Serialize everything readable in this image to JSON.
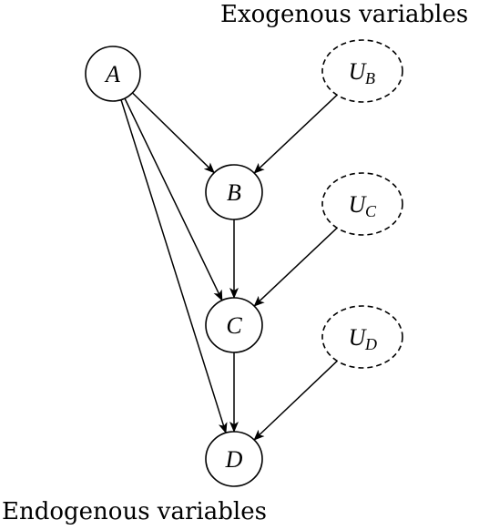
{
  "labels": {
    "exogenous": "Exogenous variables",
    "endogenous": "Endogenous variables"
  },
  "nodes": [
    {
      "id": "A",
      "label": "A",
      "sub": "",
      "kind": "endogenous"
    },
    {
      "id": "B",
      "label": "B",
      "sub": "",
      "kind": "endogenous"
    },
    {
      "id": "C",
      "label": "C",
      "sub": "",
      "kind": "endogenous"
    },
    {
      "id": "D",
      "label": "D",
      "sub": "",
      "kind": "endogenous"
    },
    {
      "id": "UB",
      "label": "U",
      "sub": "B",
      "kind": "exogenous"
    },
    {
      "id": "UC",
      "label": "U",
      "sub": "C",
      "kind": "exogenous"
    },
    {
      "id": "UD",
      "label": "U",
      "sub": "D",
      "kind": "exogenous"
    }
  ],
  "edges": [
    {
      "from": "A",
      "to": "B"
    },
    {
      "from": "A",
      "to": "C"
    },
    {
      "from": "A",
      "to": "D"
    },
    {
      "from": "B",
      "to": "C"
    },
    {
      "from": "C",
      "to": "D"
    },
    {
      "from": "UB",
      "to": "B"
    },
    {
      "from": "UC",
      "to": "C"
    },
    {
      "from": "UD",
      "to": "D"
    }
  ],
  "colors": {
    "stroke": "#000000",
    "background": "#ffffff"
  }
}
